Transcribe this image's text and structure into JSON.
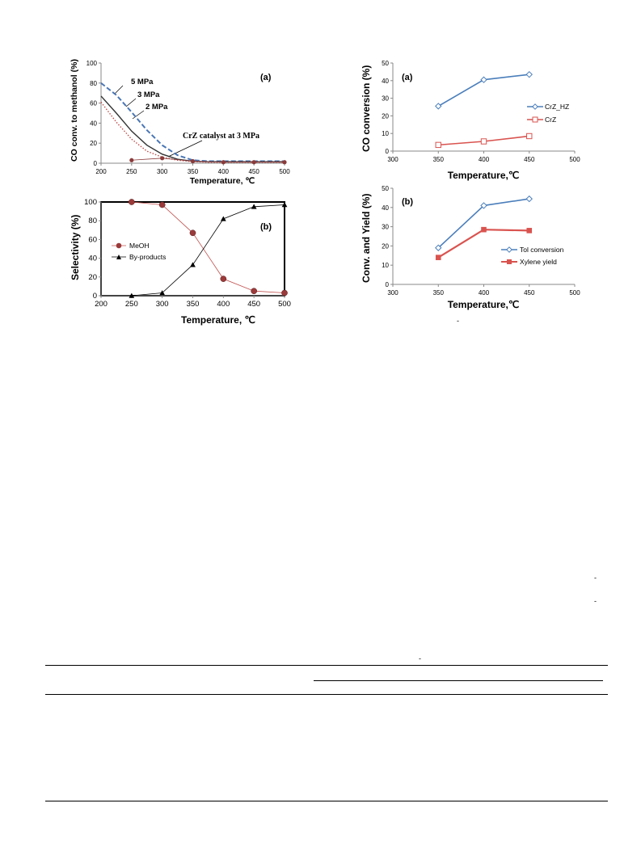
{
  "chart_data": [
    {
      "type": "line",
      "panel_label": "(a)",
      "xlabel": "Temperature, ℃",
      "ylabel": "CO conv. to methanol (%)",
      "xlim": [
        200,
        500
      ],
      "ylim": [
        0,
        100
      ],
      "xticks": [
        "200",
        "250",
        "300",
        "350",
        "400",
        "450",
        "500"
      ],
      "yticks": [
        "0",
        "20",
        "40",
        "60",
        "80",
        "100"
      ],
      "series": [
        {
          "name": "5 MPa",
          "color": "#4a76b5",
          "style": "dashed",
          "x": [
            200,
            225,
            250,
            275,
            300,
            325,
            350,
            375,
            400,
            450,
            500
          ],
          "values": [
            80,
            68,
            51,
            33,
            18,
            8,
            3,
            2,
            2,
            2,
            2
          ]
        },
        {
          "name": "3 MPa",
          "color": "#333333",
          "style": "solid",
          "x": [
            200,
            225,
            250,
            275,
            300,
            325,
            350,
            375,
            400,
            450,
            500
          ],
          "values": [
            67,
            50,
            32,
            18,
            9,
            4,
            2,
            1.5,
            1.5,
            1.5,
            1.5
          ]
        },
        {
          "name": "2 MPa",
          "color": "#c0504d",
          "style": "dotted",
          "x": [
            200,
            225,
            250,
            275,
            300,
            325,
            350,
            375,
            400,
            450,
            500
          ],
          "values": [
            61,
            41,
            24,
            12,
            6,
            3,
            1.5,
            1,
            1,
            1,
            1
          ]
        },
        {
          "name": "CrZ catalyst at 3 MPa",
          "color": "#8b3a3a",
          "style": "markers",
          "x": [
            250,
            300,
            350,
            400,
            450,
            500
          ],
          "values": [
            3,
            5,
            2,
            1,
            1,
            1
          ]
        }
      ]
    },
    {
      "type": "line",
      "panel_label": "(b)",
      "xlabel": "Temperature, ℃",
      "ylabel": "Selectivity (%)",
      "xlim": [
        200,
        500
      ],
      "ylim": [
        0,
        100
      ],
      "xticks": [
        "200",
        "250",
        "300",
        "350",
        "400",
        "450",
        "500"
      ],
      "yticks": [
        "0",
        "20",
        "40",
        "60",
        "80",
        "100"
      ],
      "legend_position": "middle-left",
      "series": [
        {
          "name": "MeOH",
          "color": "#9b3a3a",
          "x": [
            250,
            300,
            350,
            400,
            450,
            500
          ],
          "values": [
            100,
            97,
            67,
            18,
            5,
            3
          ]
        },
        {
          "name": "By-products",
          "color": "#000000",
          "x": [
            250,
            300,
            350,
            400,
            450,
            500
          ],
          "values": [
            0,
            3,
            33,
            82,
            95,
            97
          ]
        }
      ]
    },
    {
      "type": "line",
      "panel_label": "(a)",
      "xlabel": "Temperature,℃",
      "ylabel": "CO conversion (%)",
      "xlim": [
        300,
        500
      ],
      "ylim": [
        0,
        50
      ],
      "xticks": [
        "300",
        "350",
        "400",
        "450",
        "500"
      ],
      "yticks": [
        "0",
        "10",
        "20",
        "30",
        "40",
        "50"
      ],
      "legend_position": "right",
      "series": [
        {
          "name": "CrZ_HZ",
          "color": "#4a7ebb",
          "x": [
            350,
            400,
            450
          ],
          "values": [
            25.5,
            40.5,
            43.5
          ]
        },
        {
          "name": "CrZ",
          "color": "#d9534f",
          "x": [
            350,
            400,
            450
          ],
          "values": [
            3.5,
            5.5,
            8.5
          ]
        }
      ]
    },
    {
      "type": "line",
      "panel_label": "(b)",
      "xlabel": "Temperature,℃",
      "ylabel": "Conv. and Yield (%)",
      "xlim": [
        300,
        500
      ],
      "ylim": [
        0,
        50
      ],
      "xticks": [
        "300",
        "350",
        "400",
        "450",
        "500"
      ],
      "yticks": [
        "0",
        "10",
        "20",
        "30",
        "40",
        "50"
      ],
      "legend_position": "lower-right",
      "series": [
        {
          "name": "Tol conversion",
          "color": "#4a7ebb",
          "x": [
            350,
            400,
            450
          ],
          "values": [
            19,
            41,
            44.5
          ]
        },
        {
          "name": "Xylene yield",
          "color": "#d9534f",
          "x": [
            350,
            400,
            450
          ],
          "values": [
            14,
            28.5,
            28
          ]
        }
      ]
    }
  ]
}
